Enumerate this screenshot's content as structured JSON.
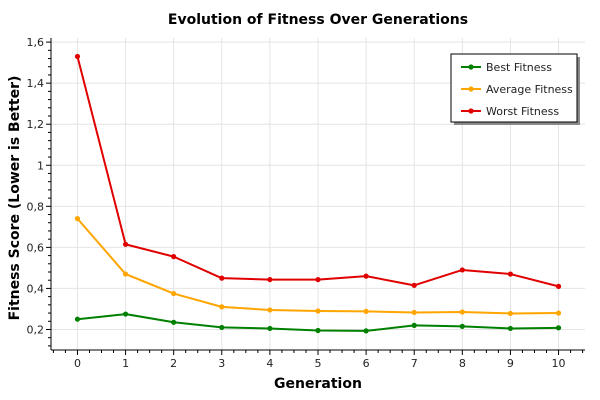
{
  "chart_data": {
    "type": "line",
    "title": "Evolution of Fitness Over Generations",
    "xlabel": "Generation",
    "ylabel": "Fitness Score (Lower is Better)",
    "x": [
      0,
      1,
      2,
      3,
      4,
      5,
      6,
      7,
      8,
      9,
      10
    ],
    "x_ticks": [
      0,
      1,
      2,
      3,
      4,
      5,
      6,
      7,
      8,
      9,
      10
    ],
    "y_ticks": [
      "0,2",
      "0,4",
      "0,6",
      "0,8",
      "1",
      "1,2",
      "1,4",
      "1,6"
    ],
    "y_tick_values": [
      0.2,
      0.4,
      0.6,
      0.8,
      1.0,
      1.2,
      1.4,
      1.6
    ],
    "xlim": [
      -0.55,
      10.55
    ],
    "ylim": [
      0.1,
      1.62
    ],
    "grid": true,
    "legend_position": "top-right",
    "series": [
      {
        "name": "Best Fitness",
        "color": "#008000",
        "values": [
          0.25,
          0.275,
          0.235,
          0.21,
          0.205,
          0.195,
          0.193,
          0.22,
          0.215,
          0.205,
          0.208
        ]
      },
      {
        "name": "Average Fitness",
        "color": "#FFA500",
        "values": [
          0.74,
          0.47,
          0.375,
          0.31,
          0.295,
          0.29,
          0.288,
          0.283,
          0.285,
          0.278,
          0.28
        ]
      },
      {
        "name": "Worst Fitness",
        "color": "#E00000",
        "values": [
          1.53,
          0.615,
          0.555,
          0.45,
          0.443,
          0.443,
          0.46,
          0.415,
          0.49,
          0.47,
          0.41
        ]
      }
    ]
  }
}
